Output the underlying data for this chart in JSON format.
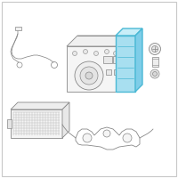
{
  "bg_color": "#ffffff",
  "border_color": "#c8c8c8",
  "line_color": "#888888",
  "highlight_stroke": "#4ab8d4",
  "highlight_fill": "#a8dff0",
  "highlight_fill2": "#7ecde8",
  "fig_size": [
    2.0,
    2.0
  ],
  "dpi": 100
}
